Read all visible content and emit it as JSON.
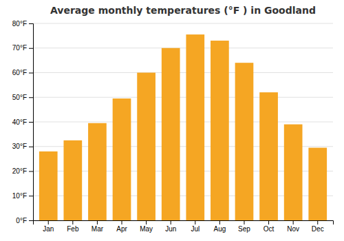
{
  "chart_data": {
    "type": "bar",
    "title": "Average monthly temperatures (°F ) in Goodland",
    "categories": [
      "Jan",
      "Feb",
      "Mar",
      "Apr",
      "May",
      "Jun",
      "Jul",
      "Aug",
      "Sep",
      "Oct",
      "Nov",
      "Dec"
    ],
    "values": [
      28,
      32.5,
      39.5,
      49.5,
      60,
      70,
      75.5,
      73,
      64,
      52,
      39,
      29.5
    ],
    "color": "#F5A623",
    "ylim": [
      0,
      80
    ],
    "yticks": [
      {
        "value": 0,
        "label": "0°F"
      },
      {
        "value": 10,
        "label": "10°F"
      },
      {
        "value": 20,
        "label": "20°F"
      },
      {
        "value": 30,
        "label": "30°F"
      },
      {
        "value": 40,
        "label": "40°F"
      },
      {
        "value": 50,
        "label": "50°F"
      },
      {
        "value": 60,
        "label": "60°F"
      },
      {
        "value": 70,
        "label": "70°F"
      },
      {
        "value": 80,
        "label": "80°F"
      }
    ],
    "grid": true
  }
}
